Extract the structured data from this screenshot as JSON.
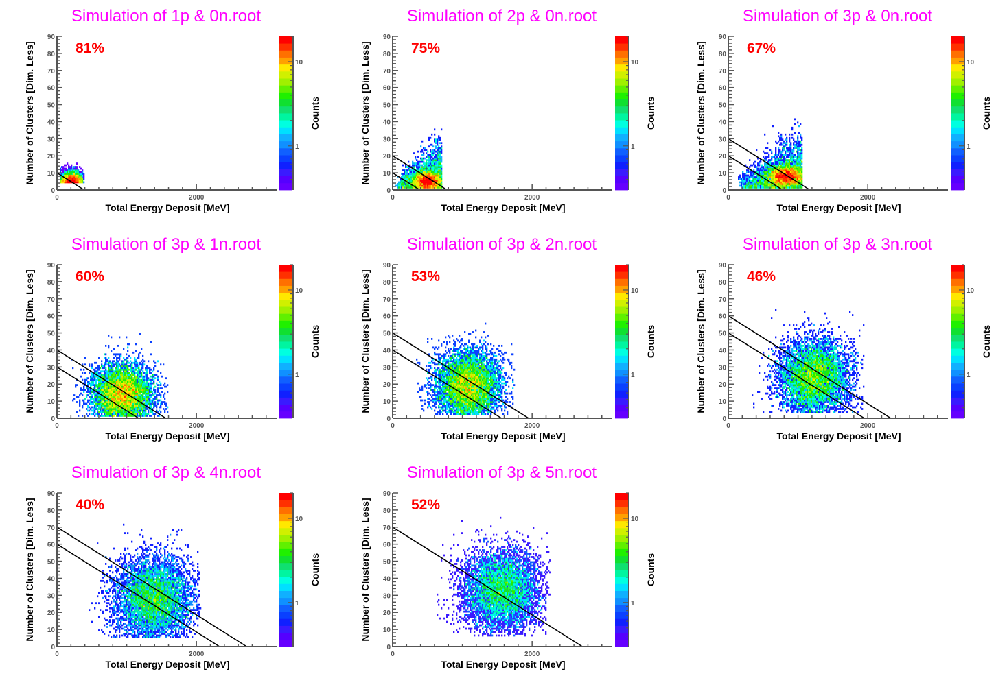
{
  "chart_data": [
    {
      "type": "heatmap",
      "title": "Simulation of 1p & 0n.root",
      "efficiency_label": "81%",
      "xlabel": "Total Energy Deposit [MeV]",
      "ylabel": "Number of Clusters [Dim. Less]",
      "zlabel": "Counts",
      "xlim": [
        0,
        3150
      ],
      "ylim": [
        0,
        90
      ],
      "x_ticks": [
        "0",
        "2000"
      ],
      "y_ticks": [
        "0",
        "10",
        "20",
        "30",
        "40",
        "50",
        "60",
        "70",
        "80",
        "90"
      ],
      "z_ticks": [
        "1",
        "10"
      ],
      "zlim": [
        0.3,
        20
      ],
      "cut_lines": [
        {
          "y_intercept": 10,
          "x_intercept": 390
        }
      ],
      "distribution": {
        "x_center": 210,
        "y_center": 4,
        "x_sigma": 90,
        "y_sigma": 4,
        "x_range": [
          40,
          380
        ],
        "y_range": [
          1,
          18
        ],
        "peak_counts": 25,
        "shape": "core",
        "entries": 3000
      }
    },
    {
      "type": "heatmap",
      "title": "Simulation of 2p & 0n.root",
      "efficiency_label": "75%",
      "xlabel": "Total Energy Deposit [MeV]",
      "ylabel": "Number of Clusters [Dim. Less]",
      "zlabel": "Counts",
      "xlim": [
        0,
        3150
      ],
      "ylim": [
        0,
        90
      ],
      "x_ticks": [
        "0",
        "2000"
      ],
      "y_ticks": [
        "0",
        "10",
        "20",
        "30",
        "40",
        "50",
        "60",
        "70",
        "80",
        "90"
      ],
      "z_ticks": [
        "1",
        "10"
      ],
      "zlim": [
        0.3,
        20
      ],
      "cut_lines": [
        {
          "y_intercept": 20,
          "x_intercept": 780
        },
        {
          "y_intercept": 10,
          "x_intercept": 390
        }
      ],
      "distribution": {
        "x_center": 500,
        "y_center": 5,
        "x_sigma": 170,
        "y_sigma": 8,
        "x_range": [
          50,
          700
        ],
        "y_range": [
          1,
          36
        ],
        "peak_counts": 25,
        "shape": "wedge",
        "entries": 5000
      }
    },
    {
      "type": "heatmap",
      "title": "Simulation of 3p & 0n.root",
      "efficiency_label": "67%",
      "xlabel": "Total Energy Deposit [MeV]",
      "ylabel": "Number of Clusters [Dim. Less]",
      "zlabel": "Counts",
      "xlim": [
        0,
        3150
      ],
      "ylim": [
        0,
        90
      ],
      "x_ticks": [
        "0",
        "2000"
      ],
      "y_ticks": [
        "0",
        "10",
        "20",
        "30",
        "40",
        "50",
        "60",
        "70",
        "80",
        "90"
      ],
      "z_ticks": [
        "1",
        "10"
      ],
      "zlim": [
        0.3,
        20
      ],
      "cut_lines": [
        {
          "y_intercept": 30,
          "x_intercept": 1170
        },
        {
          "y_intercept": 20,
          "x_intercept": 780
        }
      ],
      "distribution": {
        "x_center": 830,
        "y_center": 8,
        "x_sigma": 220,
        "y_sigma": 9,
        "x_range": [
          150,
          1060
        ],
        "y_range": [
          1,
          47
        ],
        "peak_counts": 22,
        "shape": "wedge",
        "entries": 6000
      }
    },
    {
      "type": "heatmap",
      "title": "Simulation of 3p & 1n.root",
      "efficiency_label": "60%",
      "xlabel": "Total Energy Deposit [MeV]",
      "ylabel": "Number of Clusters [Dim. Less]",
      "zlabel": "Counts",
      "xlim": [
        0,
        3150
      ],
      "ylim": [
        0,
        90
      ],
      "x_ticks": [
        "0",
        "2000"
      ],
      "y_ticks": [
        "0",
        "10",
        "20",
        "30",
        "40",
        "50",
        "60",
        "70",
        "80",
        "90"
      ],
      "z_ticks": [
        "1",
        "10"
      ],
      "zlim": [
        0.3,
        20
      ],
      "cut_lines": [
        {
          "y_intercept": 40,
          "x_intercept": 1560
        },
        {
          "y_intercept": 30,
          "x_intercept": 1170
        }
      ],
      "distribution": {
        "x_center": 930,
        "y_center": 14,
        "x_sigma": 220,
        "y_sigma": 9,
        "x_range": [
          200,
          1600
        ],
        "y_range": [
          1,
          50
        ],
        "peak_counts": 14,
        "shape": "blob",
        "entries": 7000
      }
    },
    {
      "type": "heatmap",
      "title": "Simulation of 3p & 2n.root",
      "efficiency_label": "53%",
      "xlabel": "Total Energy Deposit [MeV]",
      "ylabel": "Number of Clusters [Dim. Less]",
      "zlabel": "Counts",
      "xlim": [
        0,
        3150
      ],
      "ylim": [
        0,
        90
      ],
      "x_ticks": [
        "0",
        "2000"
      ],
      "y_ticks": [
        "0",
        "10",
        "20",
        "30",
        "40",
        "50",
        "60",
        "70",
        "80",
        "90"
      ],
      "z_ticks": [
        "1",
        "10"
      ],
      "zlim": [
        0.3,
        20
      ],
      "cut_lines": [
        {
          "y_intercept": 50,
          "x_intercept": 1950
        },
        {
          "y_intercept": 40,
          "x_intercept": 1560
        }
      ],
      "distribution": {
        "x_center": 1080,
        "y_center": 19,
        "x_sigma": 230,
        "y_sigma": 10,
        "x_range": [
          300,
          1750
        ],
        "y_range": [
          2,
          56
        ],
        "peak_counts": 12,
        "shape": "blob",
        "entries": 7000
      }
    },
    {
      "type": "heatmap",
      "title": "Simulation of 3p & 3n.root",
      "efficiency_label": "46%",
      "xlabel": "Total Energy Deposit [MeV]",
      "ylabel": "Number of Clusters [Dim. Less]",
      "zlabel": "Counts",
      "xlim": [
        0,
        3150
      ],
      "ylim": [
        0,
        90
      ],
      "x_ticks": [
        "0",
        "2000"
      ],
      "y_ticks": [
        "0",
        "10",
        "20",
        "30",
        "40",
        "50",
        "60",
        "70",
        "80",
        "90"
      ],
      "z_ticks": [
        "1",
        "10"
      ],
      "zlim": [
        0.3,
        20
      ],
      "cut_lines": [
        {
          "y_intercept": 60,
          "x_intercept": 2330
        },
        {
          "y_intercept": 50,
          "x_intercept": 1950
        }
      ],
      "distribution": {
        "x_center": 1230,
        "y_center": 24,
        "x_sigma": 250,
        "y_sigma": 11,
        "x_range": [
          250,
          1950
        ],
        "y_range": [
          3,
          68
        ],
        "peak_counts": 9,
        "shape": "blob",
        "entries": 7000
      }
    },
    {
      "type": "heatmap",
      "title": "Simulation of 3p & 4n.root",
      "efficiency_label": "40%",
      "xlabel": "Total Energy Deposit [MeV]",
      "ylabel": "Number of Clusters [Dim. Less]",
      "zlabel": "Counts",
      "xlim": [
        0,
        3150
      ],
      "ylim": [
        0,
        90
      ],
      "x_ticks": [
        "0",
        "2000"
      ],
      "y_ticks": [
        "0",
        "10",
        "20",
        "30",
        "40",
        "50",
        "60",
        "70",
        "80",
        "90"
      ],
      "z_ticks": [
        "1",
        "10"
      ],
      "zlim": [
        0.3,
        20
      ],
      "cut_lines": [
        {
          "y_intercept": 70,
          "x_intercept": 2720
        },
        {
          "y_intercept": 60,
          "x_intercept": 2330
        }
      ],
      "distribution": {
        "x_center": 1380,
        "y_center": 28,
        "x_sigma": 270,
        "y_sigma": 12,
        "x_range": [
          450,
          2050
        ],
        "y_range": [
          5,
          72
        ],
        "peak_counts": 8,
        "shape": "blob",
        "entries": 7000
      }
    },
    {
      "type": "heatmap",
      "title": "Simulation of 3p & 5n.root",
      "efficiency_label": "52%",
      "xlabel": "Total Energy Deposit [MeV]",
      "ylabel": "Number of Clusters [Dim. Less]",
      "zlabel": "Counts",
      "xlim": [
        0,
        3150
      ],
      "ylim": [
        0,
        90
      ],
      "x_ticks": [
        "0",
        "2000"
      ],
      "y_ticks": [
        "0",
        "10",
        "20",
        "30",
        "40",
        "50",
        "60",
        "70",
        "80",
        "90"
      ],
      "z_ticks": [
        "1",
        "10"
      ],
      "zlim": [
        0.3,
        20
      ],
      "cut_lines": [
        {
          "y_intercept": 70,
          "x_intercept": 2720
        }
      ],
      "distribution": {
        "x_center": 1560,
        "y_center": 33,
        "x_sigma": 280,
        "y_sigma": 12,
        "x_range": [
          550,
          2250
        ],
        "y_range": [
          6,
          76
        ],
        "peak_counts": 7,
        "shape": "blob",
        "entries": 7000
      }
    }
  ],
  "palette": [
    "#6600ff",
    "#5500ff",
    "#3a1aff",
    "#1020ff",
    "#0a40ff",
    "#1060ff",
    "#1090ff",
    "#10b0ff",
    "#00e0ff",
    "#00ffe0",
    "#00f5a0",
    "#10e070",
    "#10e030",
    "#20f000",
    "#60f000",
    "#a0f000",
    "#d0f000",
    "#ffe800",
    "#ffa000",
    "#ff7000",
    "#ff3000",
    "#ff0000"
  ],
  "colors": {
    "title": "#ff00ff",
    "efficiency": "#ff0000",
    "cut_line": "#000000",
    "axis": "#555555"
  }
}
